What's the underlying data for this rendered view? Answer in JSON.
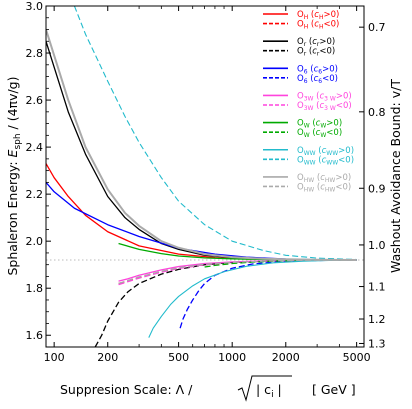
{
  "chart_data": {
    "type": "line",
    "ylabel": "Spaleron Energy: E_sph / (4πv/g)",
    "ylabel_parts": {
      "pre": "Sphaleron Energy: ",
      "E": "E",
      "sub": "sph",
      "post": " / (4πv/g)"
    },
    "xlabel_parts": {
      "pre": "Suppresion Scale: Λ / ",
      "inside": "| c",
      "sub": "i",
      "close": " |",
      "unit": "[ GeV ]"
    },
    "y2label": "Washout Avoidance Bound: v/T",
    "xscale": "log",
    "xlim": [
      90,
      5500
    ],
    "ylim": [
      1.55,
      3.0
    ],
    "x_ticks": [
      100,
      200,
      500,
      1000,
      2000,
      5000
    ],
    "x_tick_labels": [
      "100",
      "200",
      "500",
      "1000",
      "2000",
      "5000"
    ],
    "y_ticks": [
      1.6,
      1.8,
      2.0,
      2.2,
      2.4,
      2.6,
      2.8,
      3.0
    ],
    "y_tick_labels": [
      "1.6",
      "1.8",
      "2.0",
      "2.2",
      "2.4",
      "2.6",
      "2.8",
      "3.0"
    ],
    "y2_ticks": [
      0.7,
      0.8,
      0.9,
      1.0,
      1.1,
      1.2,
      1.3
    ],
    "y2_tick_labels": [
      "0.7",
      "0.8",
      "0.9",
      "1.0",
      "1.1",
      "1.2",
      "1.3"
    ],
    "y2_positions_in_y_units": [
      2.91,
      2.55,
      2.225,
      1.984,
      1.807,
      1.669,
      1.565
    ],
    "reference_line": {
      "y": 1.92,
      "style": "dotted",
      "color": "#bbbbbb"
    },
    "legend": [
      {
        "op": "O",
        "op_sub": "H",
        "cond": "c",
        "cond_sub": "H",
        "sign": ">0",
        "color": "#ff0000",
        "dash": "solid"
      },
      {
        "op": "O",
        "op_sub": "H",
        "cond": "c",
        "cond_sub": "H",
        "sign": "<0",
        "color": "#ff0000",
        "dash": "dashed"
      },
      {
        "op": "O",
        "op_sub": "r",
        "cond": "c",
        "cond_sub": "r",
        "sign": ">0",
        "color": "#000000",
        "dash": "solid"
      },
      {
        "op": "O",
        "op_sub": "r",
        "cond": "c",
        "cond_sub": "r",
        "sign": "<0",
        "color": "#000000",
        "dash": "dashed"
      },
      {
        "op": "O",
        "op_sub": "6",
        "cond": "c",
        "cond_sub": "6",
        "sign": ">0",
        "color": "#0000ff",
        "dash": "solid"
      },
      {
        "op": "O",
        "op_sub": "6",
        "cond": "c",
        "cond_sub": "6",
        "sign": "<0",
        "color": "#0000ff",
        "dash": "dashed"
      },
      {
        "op": "O",
        "op_sub": "3W",
        "cond": "c",
        "cond_sub": "3 W",
        "sign": ">0",
        "color": "#ff44dd",
        "dash": "solid"
      },
      {
        "op": "O",
        "op_sub": "3W",
        "cond": "c",
        "cond_sub": "3 W",
        "sign": "<0",
        "color": "#ff44dd",
        "dash": "dashed"
      },
      {
        "op": "O",
        "op_sub": "W",
        "cond": "c",
        "cond_sub": "W",
        "sign": ">0",
        "color": "#00aa00",
        "dash": "solid"
      },
      {
        "op": "O",
        "op_sub": "W",
        "cond": "c",
        "cond_sub": "W",
        "sign": "<0",
        "color": "#00aa00",
        "dash": "dashed"
      },
      {
        "op": "O",
        "op_sub": "WW",
        "cond": "c",
        "cond_sub": "WW",
        "sign": ">0",
        "color": "#22bbcc",
        "dash": "solid"
      },
      {
        "op": "O",
        "op_sub": "WW",
        "cond": "c",
        "cond_sub": "WW",
        "sign": "<0",
        "color": "#22bbcc",
        "dash": "dashed"
      },
      {
        "op": "O",
        "op_sub": "HW",
        "cond": "c",
        "cond_sub": "HW",
        "sign": ">0",
        "color": "#aaaaaa",
        "dash": "solid"
      },
      {
        "op": "O",
        "op_sub": "HW",
        "cond": "c",
        "cond_sub": "HW",
        "sign": "<0",
        "color": "#aaaaaa",
        "dash": "dashed"
      }
    ],
    "series": [
      {
        "key": "OH_pos",
        "color": "#ff0000",
        "dash": "solid",
        "width": 1.3,
        "x": [
          90,
          100,
          120,
          150,
          200,
          300,
          500,
          800,
          1200,
          2000,
          3000,
          5000
        ],
        "y": [
          2.33,
          2.27,
          2.19,
          2.11,
          2.04,
          1.98,
          1.945,
          1.93,
          1.925,
          1.922,
          1.921,
          1.92
        ]
      },
      {
        "key": "OH_neg",
        "color": "#ff0000",
        "dash": "dashed",
        "width": 1.3,
        "x": [
          230,
          260,
          300,
          400,
          500,
          700,
          1000,
          1500,
          2000,
          3000,
          5000
        ],
        "y": [
          1.82,
          1.83,
          1.845,
          1.87,
          1.885,
          1.9,
          1.91,
          1.915,
          1.918,
          1.919,
          1.92
        ]
      },
      {
        "key": "Or_pos",
        "color": "#000000",
        "dash": "solid",
        "width": 1.3,
        "x": [
          90,
          100,
          120,
          150,
          200,
          250,
          300,
          400,
          500,
          700,
          1000,
          1500,
          2000,
          3000,
          5000
        ],
        "y": [
          2.85,
          2.74,
          2.55,
          2.37,
          2.19,
          2.1,
          2.05,
          1.99,
          1.965,
          1.94,
          1.93,
          1.924,
          1.922,
          1.921,
          1.92
        ]
      },
      {
        "key": "Or_neg",
        "color": "#000000",
        "dash": "dashed",
        "width": 1.3,
        "x": [
          170,
          185,
          200,
          230,
          260,
          300,
          400,
          500,
          700,
          1000,
          2000,
          5000
        ],
        "y": [
          1.55,
          1.6,
          1.66,
          1.74,
          1.785,
          1.82,
          1.86,
          1.88,
          1.9,
          1.91,
          1.918,
          1.92
        ]
      },
      {
        "key": "O6_pos",
        "color": "#0000ff",
        "dash": "solid",
        "width": 1.3,
        "x": [
          90,
          100,
          130,
          200,
          300,
          500,
          800,
          1200,
          2000,
          3000,
          5000
        ],
        "y": [
          2.25,
          2.21,
          2.14,
          2.07,
          2.02,
          1.97,
          1.945,
          1.932,
          1.924,
          1.921,
          1.92
        ]
      },
      {
        "key": "O6_neg",
        "color": "#0000ff",
        "dash": "dashed",
        "width": 1.3,
        "x": [
          510,
          530,
          560,
          600,
          650,
          700,
          800,
          1000,
          1300,
          2000,
          3000,
          5000
        ],
        "y": [
          1.63,
          1.67,
          1.71,
          1.75,
          1.79,
          1.82,
          1.855,
          1.885,
          1.903,
          1.915,
          1.918,
          1.92
        ]
      },
      {
        "key": "O3W_pos",
        "color": "#ff44dd",
        "dash": "solid",
        "width": 1.3,
        "x": [
          230,
          260,
          300,
          400,
          500,
          700,
          1000,
          1500,
          2000,
          3000,
          5000
        ],
        "y": [
          1.83,
          1.84,
          1.855,
          1.878,
          1.892,
          1.905,
          1.912,
          1.916,
          1.918,
          1.919,
          1.92
        ]
      },
      {
        "key": "O3W_neg",
        "color": "#ff44dd",
        "dash": "dashed",
        "width": 1.3,
        "x": [
          230,
          260,
          300,
          400,
          500,
          700,
          1000,
          1500,
          2000,
          3000,
          5000
        ],
        "y": [
          1.815,
          1.828,
          1.843,
          1.868,
          1.884,
          1.9,
          1.909,
          1.915,
          1.917,
          1.919,
          1.92
        ]
      },
      {
        "key": "OW_pos",
        "color": "#00aa00",
        "dash": "solid",
        "width": 1.3,
        "x": [
          230,
          300,
          400,
          500,
          700,
          1000,
          1500,
          2000,
          3000,
          5000
        ],
        "y": [
          1.99,
          1.965,
          1.947,
          1.937,
          1.929,
          1.925,
          1.922,
          1.921,
          1.92,
          1.92
        ]
      },
      {
        "key": "OW_neg",
        "color": "#00aa00",
        "dash": "dashed",
        "width": 1.3,
        "x": [
          700,
          800,
          1000,
          1300,
          1700,
          2000,
          3000,
          5000
        ],
        "y": [
          1.89,
          1.897,
          1.905,
          1.911,
          1.915,
          1.917,
          1.919,
          1.92
        ]
      },
      {
        "key": "OWW_pos",
        "color": "#22bbcc",
        "dash": "solid",
        "width": 1.1,
        "x": [
          340,
          360,
          400,
          450,
          500,
          600,
          700,
          900,
          1200,
          1700,
          2500,
          3500,
          5000
        ],
        "y": [
          1.59,
          1.63,
          1.68,
          1.73,
          1.765,
          1.81,
          1.84,
          1.87,
          1.893,
          1.908,
          1.915,
          1.918,
          1.92
        ]
      },
      {
        "key": "OWW_neg",
        "color": "#22bbcc",
        "dash": "dashed",
        "width": 1.1,
        "x": [
          130,
          150,
          200,
          250,
          300,
          400,
          500,
          700,
          1000,
          1500,
          2000,
          3000,
          5000
        ],
        "y": [
          3.0,
          2.88,
          2.68,
          2.53,
          2.42,
          2.27,
          2.17,
          2.07,
          2.0,
          1.96,
          1.94,
          1.928,
          1.922
        ]
      },
      {
        "key": "OHW_pos",
        "color": "#aaaaaa",
        "dash": "solid",
        "width": 2.0,
        "x": [
          90,
          100,
          120,
          150,
          200,
          250,
          300,
          400,
          500,
          700,
          1000,
          1500,
          2000,
          3000,
          5000
        ],
        "y": [
          2.9,
          2.79,
          2.6,
          2.4,
          2.22,
          2.12,
          2.065,
          2.0,
          1.972,
          1.945,
          1.932,
          1.925,
          1.923,
          1.921,
          1.92
        ]
      },
      {
        "key": "OHW_neg",
        "color": "#aaaaaa",
        "dash": "dashed",
        "width": 1.3,
        "x": [
          230,
          260,
          300,
          400,
          500,
          700,
          1000,
          1500,
          2000,
          3000,
          5000
        ],
        "y": [
          1.82,
          1.833,
          1.848,
          1.872,
          1.887,
          1.902,
          1.91,
          1.915,
          1.918,
          1.919,
          1.92
        ]
      }
    ]
  }
}
